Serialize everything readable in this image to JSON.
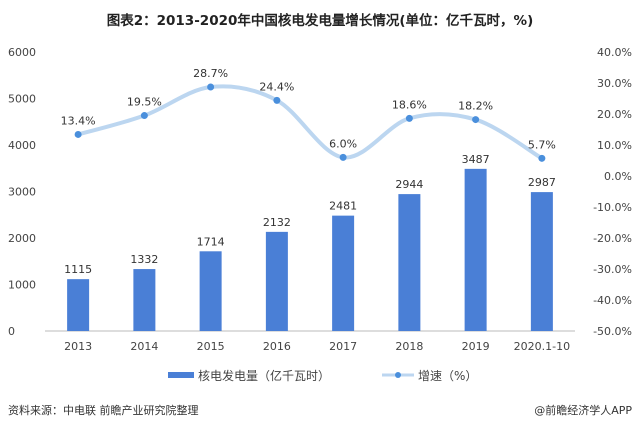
{
  "chart_data": {
    "type": "bar+line",
    "title": "图表2：2013-2020年中国核电发电量增长情况(单位：亿千瓦时，%)",
    "categories": [
      "2013",
      "2014",
      "2015",
      "2016",
      "2017",
      "2018",
      "2019",
      "2020.1-10"
    ],
    "series": [
      {
        "name": "核电发电量（亿千瓦时）",
        "type": "bar",
        "axis": "left",
        "values": [
          1115,
          1332,
          1714,
          2132,
          2481,
          2944,
          3487,
          2987
        ],
        "color": "#4a7fd6"
      },
      {
        "name": "增速（%）",
        "type": "line",
        "axis": "right",
        "values": [
          13.4,
          19.5,
          28.7,
          24.4,
          6.0,
          18.6,
          18.2,
          5.7
        ],
        "color": "#bcd6f0",
        "marker_color": "#4a8fdc"
      }
    ],
    "left_axis": {
      "ylim": [
        0,
        6000
      ],
      "ticks": [
        "0",
        "1000",
        "2000",
        "3000",
        "4000",
        "5000",
        "6000"
      ]
    },
    "right_axis": {
      "ylim": [
        -50,
        40
      ],
      "ticks": [
        "-50.0%",
        "-40.0%",
        "-30.0%",
        "-20.0%",
        "-10.0%",
        "0.0%",
        "10.0%",
        "20.0%",
        "30.0%",
        "40.0%"
      ]
    },
    "grid": false,
    "legend": "bottom"
  },
  "footer": {
    "source": "资料来源：中电联 前瞻产业研究院整理",
    "brand": "@前瞻经济学人APP"
  }
}
